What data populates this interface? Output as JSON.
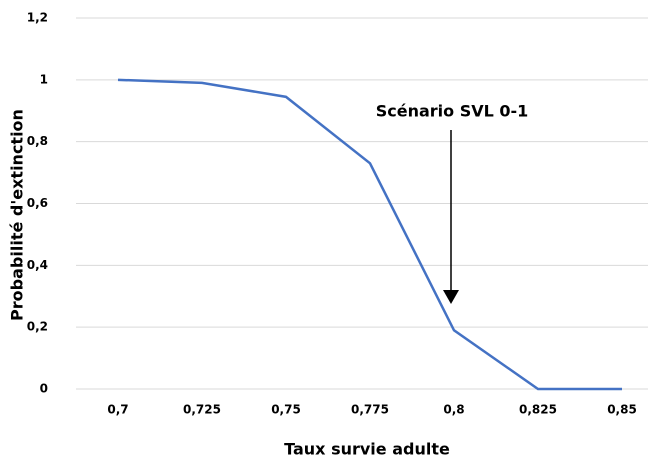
{
  "chart_data": {
    "type": "line",
    "categories": [
      "0,7",
      "0,725",
      "0,75",
      "0,775",
      "0,8",
      "0,825",
      "0,85"
    ],
    "series": [
      {
        "name": "Probabilité d'extinction",
        "color": "#4472c4",
        "values": [
          1.0,
          0.99,
          0.945,
          0.73,
          0.19,
          0.0,
          0.0
        ]
      }
    ],
    "ylim": [
      0,
      1.2
    ],
    "yticks": [
      0,
      {
        "value": 0.2,
        "label": "0,2"
      },
      {
        "value": 0.4,
        "label": "0,4"
      },
      {
        "value": 0.6,
        "label": "0,6"
      },
      {
        "value": 0.8,
        "label": "0,8"
      },
      1,
      {
        "value": 1.2,
        "label": "1,2"
      }
    ],
    "grid": true,
    "x_label": "Taux survie adulte",
    "y_label": "Probabilité d'extinction",
    "annotation": "Scénario SVL 0-1"
  }
}
